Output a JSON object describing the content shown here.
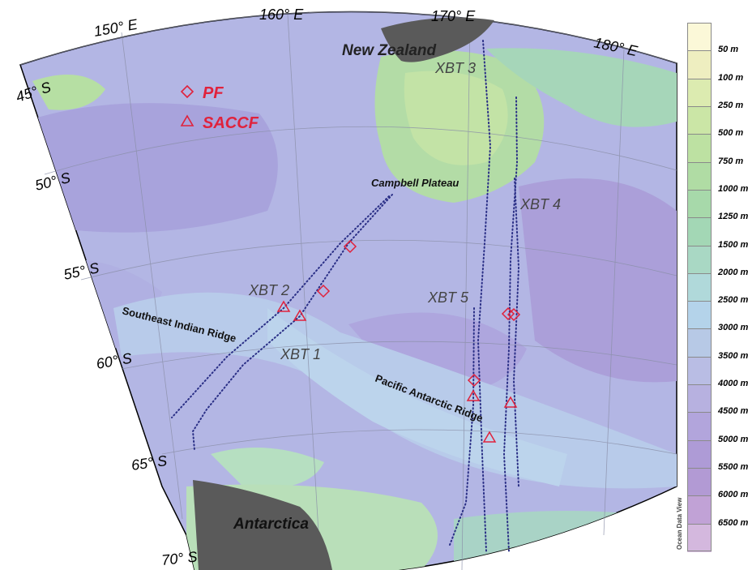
{
  "map": {
    "longitude_labels": [
      "150° E",
      "160° E",
      "170° E",
      "180° E"
    ],
    "latitude_labels": [
      "45° S",
      "50° S",
      "55° S",
      "60° S",
      "65° S",
      "70° S"
    ],
    "legend": [
      {
        "symbol": "diamond",
        "label": "PF"
      },
      {
        "symbol": "triangle",
        "label": "SACCF"
      }
    ],
    "place_labels": {
      "new_zealand": "New Zealand",
      "antarctica": "Antarctica",
      "campbell_plateau": "Campbell Plateau",
      "southeast_indian_ridge": "Southeast Indian Ridge",
      "pacific_antarctic_ridge": "Pacific Antarctic Ridge"
    },
    "transect_labels": {
      "xbt1": "XBT 1",
      "xbt2": "XBT 2",
      "xbt3": "XBT 3",
      "xbt4": "XBT 4",
      "xbt5": "XBT 5"
    },
    "front_marker_color": "#e0223c",
    "track_color": "#2a2f86",
    "land_color": "#5a5a5a"
  },
  "colorbar": {
    "levels": [
      "50 m",
      "100 m",
      "250 m",
      "500 m",
      "750 m",
      "1000 m",
      "1250 m",
      "1500 m",
      "2000 m",
      "2500 m",
      "3000 m",
      "3500 m",
      "4000 m",
      "4500 m",
      "5000 m",
      "5500 m",
      "6000 m",
      "6500 m"
    ],
    "colors": [
      "#fbf8d8",
      "#eeeec0",
      "#dcebb0",
      "#cbe6a6",
      "#bde1a2",
      "#b0dca4",
      "#a7d9aa",
      "#a3d7b5",
      "#a9d8c4",
      "#b0d9da",
      "#b4d3ea",
      "#b7c9e6",
      "#b9bde4",
      "#b7b1e0",
      "#b2a5dc",
      "#ae9bd6",
      "#b29ad4",
      "#c1a2d6",
      "#d4b8de"
    ],
    "credit": "Ocean Data View"
  }
}
